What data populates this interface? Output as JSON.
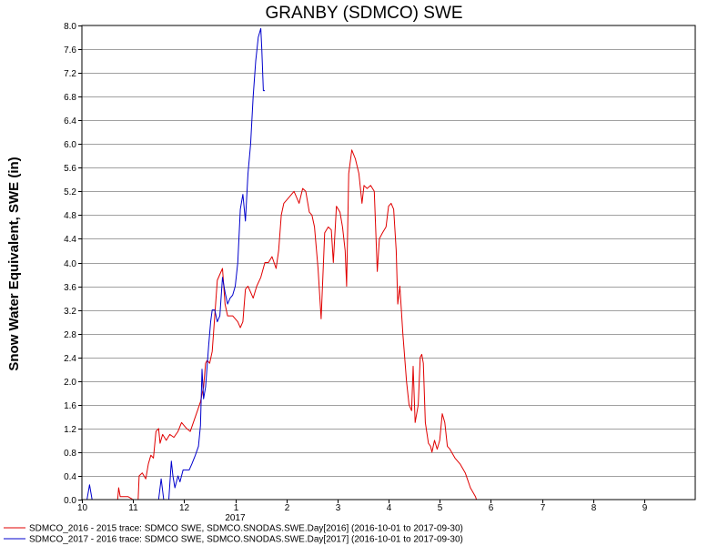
{
  "chart_data": {
    "type": "line",
    "title": "GRANBY (SDMCO) SWE",
    "ylabel": "Snow Water Equivalent, SWE (in)",
    "xlabel": "",
    "ylim": [
      0,
      8
    ],
    "xlim": [
      10,
      22
    ],
    "yticks": [
      "0.0",
      "0.4",
      "0.8",
      "1.2",
      "1.6",
      "2.0",
      "2.4",
      "2.8",
      "3.2",
      "3.6",
      "4.0",
      "4.4",
      "4.8",
      "5.2",
      "5.6",
      "6.0",
      "6.4",
      "6.8",
      "7.2",
      "7.6",
      "8.0"
    ],
    "xticks": [
      {
        "x": 10,
        "label": "10"
      },
      {
        "x": 11,
        "label": "11"
      },
      {
        "x": 12,
        "label": "12"
      },
      {
        "x": 13,
        "label": "1"
      },
      {
        "x": 14,
        "label": "2"
      },
      {
        "x": 15,
        "label": "3"
      },
      {
        "x": 16,
        "label": "4"
      },
      {
        "x": 17,
        "label": "5"
      },
      {
        "x": 18,
        "label": "6"
      },
      {
        "x": 19,
        "label": "7"
      },
      {
        "x": 20,
        "label": "8"
      },
      {
        "x": 21,
        "label": "9"
      }
    ],
    "year_label": {
      "x": 13,
      "label": "2017"
    },
    "grid": true,
    "legend_position": "bottom-left",
    "series": [
      {
        "name": "SDMCO_2016 - 2015 trace: SDMCO SWE, SDMCO.SNODAS.SWE.Day[2016] (2016-10-01 to 2017-09-30)",
        "color": "#e00000",
        "points": [
          [
            10.7,
            0.0
          ],
          [
            10.72,
            0.2
          ],
          [
            10.75,
            0.05
          ],
          [
            10.9,
            0.05
          ],
          [
            11.0,
            0.0
          ],
          [
            11.1,
            0.0
          ],
          [
            11.12,
            0.4
          ],
          [
            11.18,
            0.45
          ],
          [
            11.25,
            0.35
          ],
          [
            11.3,
            0.6
          ],
          [
            11.35,
            0.75
          ],
          [
            11.4,
            0.7
          ],
          [
            11.45,
            1.15
          ],
          [
            11.5,
            1.2
          ],
          [
            11.53,
            0.95
          ],
          [
            11.58,
            1.1
          ],
          [
            11.65,
            1.0
          ],
          [
            11.72,
            1.1
          ],
          [
            11.8,
            1.05
          ],
          [
            11.88,
            1.15
          ],
          [
            11.95,
            1.3
          ],
          [
            12.05,
            1.2
          ],
          [
            12.12,
            1.15
          ],
          [
            12.2,
            1.35
          ],
          [
            12.28,
            1.55
          ],
          [
            12.32,
            1.65
          ],
          [
            12.38,
            1.9
          ],
          [
            12.42,
            2.3
          ],
          [
            12.45,
            2.35
          ],
          [
            12.5,
            2.3
          ],
          [
            12.55,
            2.5
          ],
          [
            12.6,
            3.1
          ],
          [
            12.65,
            3.7
          ],
          [
            12.7,
            3.8
          ],
          [
            12.75,
            3.9
          ],
          [
            12.8,
            3.3
          ],
          [
            12.85,
            3.1
          ],
          [
            12.9,
            3.1
          ],
          [
            12.95,
            3.1
          ],
          [
            13.05,
            3.0
          ],
          [
            13.1,
            2.9
          ],
          [
            13.15,
            3.0
          ],
          [
            13.2,
            3.55
          ],
          [
            13.25,
            3.6
          ],
          [
            13.3,
            3.5
          ],
          [
            13.35,
            3.4
          ],
          [
            13.42,
            3.6
          ],
          [
            13.5,
            3.75
          ],
          [
            13.58,
            4.0
          ],
          [
            13.65,
            4.0
          ],
          [
            13.72,
            4.1
          ],
          [
            13.8,
            3.9
          ],
          [
            13.85,
            4.2
          ],
          [
            13.9,
            4.8
          ],
          [
            13.95,
            5.0
          ],
          [
            14.05,
            5.1
          ],
          [
            14.15,
            5.2
          ],
          [
            14.25,
            5.0
          ],
          [
            14.32,
            5.25
          ],
          [
            14.38,
            5.2
          ],
          [
            14.45,
            4.85
          ],
          [
            14.5,
            4.8
          ],
          [
            14.55,
            4.6
          ],
          [
            14.62,
            3.9
          ],
          [
            14.68,
            3.05
          ],
          [
            14.75,
            4.5
          ],
          [
            14.82,
            4.6
          ],
          [
            14.88,
            4.55
          ],
          [
            14.92,
            4.0
          ],
          [
            14.98,
            4.95
          ],
          [
            15.05,
            4.85
          ],
          [
            15.1,
            4.6
          ],
          [
            15.15,
            4.2
          ],
          [
            15.18,
            3.6
          ],
          [
            15.22,
            5.5
          ],
          [
            15.28,
            5.9
          ],
          [
            15.35,
            5.75
          ],
          [
            15.42,
            5.5
          ],
          [
            15.48,
            5.0
          ],
          [
            15.52,
            5.3
          ],
          [
            15.58,
            5.25
          ],
          [
            15.65,
            5.3
          ],
          [
            15.72,
            5.2
          ],
          [
            15.78,
            3.85
          ],
          [
            15.82,
            4.4
          ],
          [
            15.88,
            4.5
          ],
          [
            15.95,
            4.6
          ],
          [
            16.0,
            4.95
          ],
          [
            16.05,
            5.0
          ],
          [
            16.1,
            4.9
          ],
          [
            16.15,
            4.2
          ],
          [
            16.18,
            3.3
          ],
          [
            16.22,
            3.6
          ],
          [
            16.28,
            2.8
          ],
          [
            16.35,
            2.0
          ],
          [
            16.4,
            1.6
          ],
          [
            16.45,
            1.5
          ],
          [
            16.48,
            2.25
          ],
          [
            16.52,
            1.3
          ],
          [
            16.58,
            1.6
          ],
          [
            16.62,
            2.4
          ],
          [
            16.65,
            2.45
          ],
          [
            16.68,
            2.3
          ],
          [
            16.72,
            1.3
          ],
          [
            16.78,
            0.95
          ],
          [
            16.82,
            0.9
          ],
          [
            16.85,
            0.8
          ],
          [
            16.9,
            1.0
          ],
          [
            16.95,
            0.85
          ],
          [
            17.0,
            1.0
          ],
          [
            17.05,
            1.45
          ],
          [
            17.1,
            1.3
          ],
          [
            17.15,
            0.9
          ],
          [
            17.2,
            0.85
          ],
          [
            17.3,
            0.7
          ],
          [
            17.4,
            0.6
          ],
          [
            17.5,
            0.45
          ],
          [
            17.6,
            0.2
          ],
          [
            17.7,
            0.05
          ],
          [
            17.72,
            0.0
          ]
        ]
      },
      {
        "name": "SDMCO_2017 - 2016 trace: SDMCO SWE, SDMCO.SNODAS.SWE.Day[2017] (2016-10-01 to 2017-09-30)",
        "color": "#0000cc",
        "points": [
          [
            10.1,
            0.0
          ],
          [
            10.15,
            0.25
          ],
          [
            10.2,
            0.0
          ],
          [
            11.5,
            0.0
          ],
          [
            11.55,
            0.35
          ],
          [
            11.6,
            0.0
          ],
          [
            11.7,
            0.0
          ],
          [
            11.75,
            0.65
          ],
          [
            11.78,
            0.4
          ],
          [
            11.82,
            0.2
          ],
          [
            11.88,
            0.4
          ],
          [
            11.92,
            0.3
          ],
          [
            11.98,
            0.5
          ],
          [
            12.05,
            0.5
          ],
          [
            12.1,
            0.5
          ],
          [
            12.15,
            0.6
          ],
          [
            12.22,
            0.75
          ],
          [
            12.28,
            0.9
          ],
          [
            12.32,
            1.25
          ],
          [
            12.35,
            2.2
          ],
          [
            12.38,
            1.7
          ],
          [
            12.42,
            1.9
          ],
          [
            12.48,
            2.6
          ],
          [
            12.52,
            3.0
          ],
          [
            12.55,
            3.2
          ],
          [
            12.6,
            3.2
          ],
          [
            12.65,
            3.0
          ],
          [
            12.7,
            3.1
          ],
          [
            12.75,
            3.75
          ],
          [
            12.8,
            3.5
          ],
          [
            12.85,
            3.3
          ],
          [
            12.9,
            3.4
          ],
          [
            12.95,
            3.45
          ],
          [
            13.0,
            3.6
          ],
          [
            13.05,
            4.0
          ],
          [
            13.1,
            4.9
          ],
          [
            13.15,
            5.15
          ],
          [
            13.2,
            4.7
          ],
          [
            13.25,
            5.5
          ],
          [
            13.3,
            6.0
          ],
          [
            13.35,
            6.8
          ],
          [
            13.4,
            7.4
          ],
          [
            13.45,
            7.8
          ],
          [
            13.5,
            7.95
          ],
          [
            13.52,
            7.6
          ],
          [
            13.55,
            6.9
          ],
          [
            13.58,
            6.9
          ]
        ]
      }
    ]
  }
}
